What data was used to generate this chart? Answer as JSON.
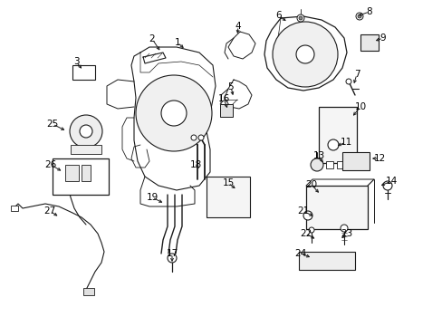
{
  "background_color": "#ffffff",
  "line_color": "#1a1a1a",
  "figsize": [
    4.89,
    3.6
  ],
  "dpi": 100,
  "labels": {
    "1": [
      196,
      47,
      "↓"
    ],
    "2": [
      168,
      43,
      "↓"
    ],
    "3": [
      87,
      68,
      "↓"
    ],
    "4": [
      265,
      30,
      "↓"
    ],
    "5": [
      258,
      97,
      "↓"
    ],
    "6": [
      307,
      18,
      "↓"
    ],
    "7": [
      393,
      82,
      "↑"
    ],
    "8": [
      406,
      13,
      "←"
    ],
    "9": [
      422,
      42,
      "←"
    ],
    "10": [
      397,
      118,
      "←"
    ],
    "11": [
      381,
      157,
      "←"
    ],
    "12": [
      418,
      175,
      "←"
    ],
    "13": [
      352,
      175,
      "↑"
    ],
    "14": [
      430,
      202,
      "←"
    ],
    "15": [
      253,
      203,
      "↑"
    ],
    "16": [
      248,
      110,
      "↓"
    ],
    "17": [
      190,
      280,
      "↑"
    ],
    "18": [
      217,
      182,
      "←"
    ],
    "19": [
      168,
      218,
      "→"
    ],
    "20": [
      344,
      205,
      "→"
    ],
    "21": [
      336,
      233,
      "→"
    ],
    "22": [
      340,
      258,
      "→"
    ],
    "23": [
      385,
      258,
      "←"
    ],
    "24": [
      333,
      280,
      "→"
    ],
    "25": [
      60,
      137,
      "→"
    ],
    "26": [
      56,
      182,
      "→"
    ],
    "27": [
      55,
      233,
      "↑"
    ]
  }
}
